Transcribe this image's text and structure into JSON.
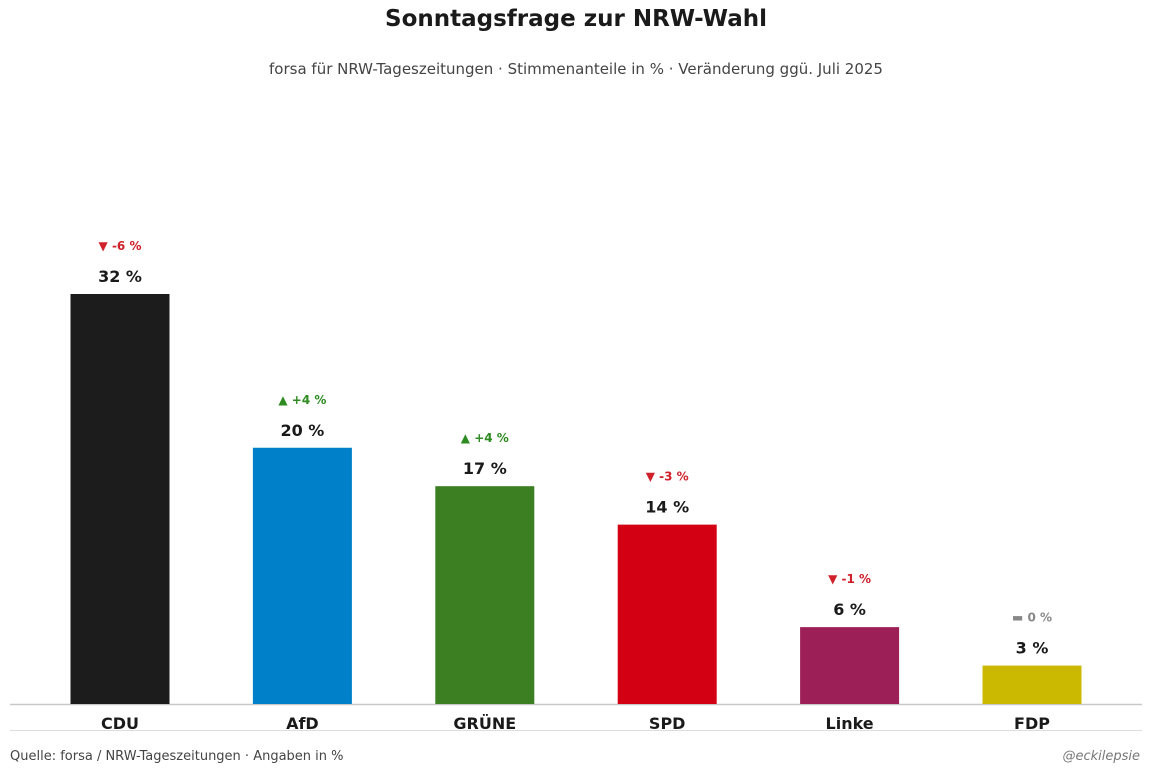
{
  "chart_data": {
    "type": "bar",
    "title": "Sonntagsfrage zur NRW-Wahl",
    "subtitle": "forsa für NRW-Tageszeitungen · Stimmenanteile in % · Veränderung ggü. Juli 2025",
    "xlabel": "",
    "ylabel": "",
    "ylim": [
      0,
      32
    ],
    "unit": "%",
    "categories": [
      "CDU",
      "AfD",
      "GRÜNE",
      "SPD",
      "Linke",
      "FDP"
    ],
    "values": [
      32,
      20,
      17,
      14,
      6,
      3
    ],
    "value_labels": [
      "32 %",
      "20 %",
      "17 %",
      "14 %",
      "6 %",
      "3 %"
    ],
    "changes": [
      -6,
      4,
      4,
      -3,
      -1,
      0
    ],
    "change_labels": [
      "▼ -6 %",
      "▲ +4 %",
      "▲ +4 %",
      "▼ -3 %",
      "▼ -1 %",
      "▬ 0 %"
    ],
    "colors": [
      "#1c1c1c",
      "#0080c9",
      "#3c7f22",
      "#d20012",
      "#9c1f58",
      "#cbb800"
    ],
    "change_colors": {
      "up": "#2e8b22",
      "down": "#d0202a",
      "neutral": "#888888"
    },
    "grid": false
  },
  "footer": {
    "source": "Quelle: forsa / NRW-Tageszeitungen · Angaben in %",
    "credit": "@eckilepsie"
  }
}
